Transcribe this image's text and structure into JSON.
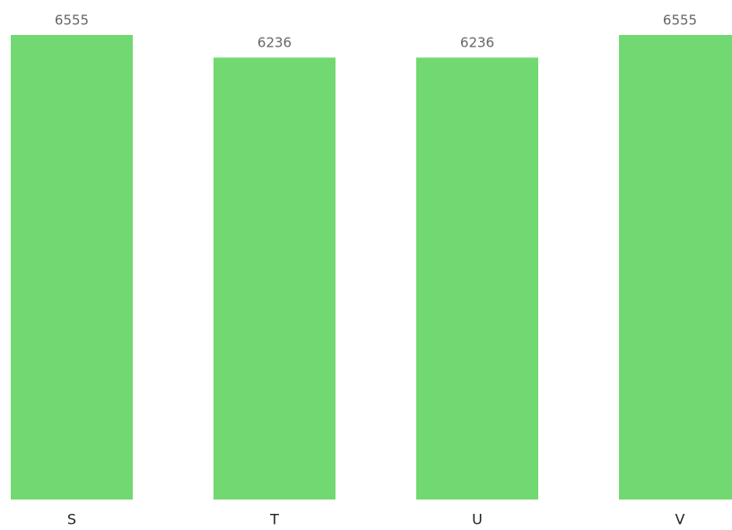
{
  "chart_data": {
    "type": "bar",
    "categories": [
      "S",
      "T",
      "U",
      "V"
    ],
    "values": [
      6555,
      6236,
      6236,
      6555
    ],
    "color": "#72d972"
  }
}
